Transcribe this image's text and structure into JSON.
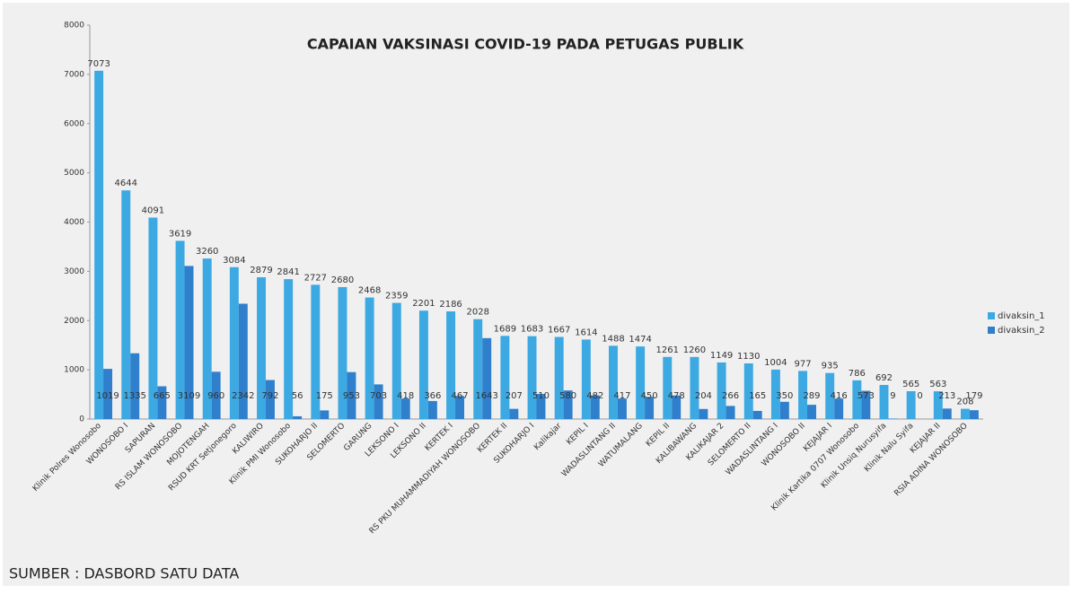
{
  "chart_data": {
    "type": "bar",
    "title": "CAPAIAN VAKSINASI COVID-19 PADA PETUGAS PUBLIK",
    "source": "SUMBER : DASBORD SATU DATA",
    "categories": [
      "Klinik Polres Wonosobo",
      "WONOSOBO I",
      "SAPURAN",
      "RS ISLAM WONOSOBO",
      "MOJOTENGAH",
      "RSUD KRT Setjonegoro",
      "KALIWIRO",
      "Klinik PMI Wonosobo",
      "SUKOHARJO II",
      "SELOMERTO",
      "GARUNG",
      "LEKSONO I",
      "LEKSONO II",
      "KERTEK I",
      "RS PKU MUHAMMADIYAH WONOSOBO",
      "KERTEK II",
      "SUKOHARJO I",
      "Kalikajar",
      "KEPIL I",
      "WADASLINTANG II",
      "WATUMALANG",
      "KEPIL II",
      "KALIBAWANG",
      "KALIKAJAR 2",
      "SELOMERTO II",
      "WADASLINTANG I",
      "WONOSOBO II",
      "KEJAJAR I",
      "Klinik Kartika 0707 Wonosobo",
      "Klinik Unsiq Nurusyifa",
      "Klinik Nalu Syifa",
      "KEJAJAR II",
      "RSIA ADINA WONOSOBO"
    ],
    "series": [
      {
        "name": "divaksin_1",
        "color": "#3ca9e2",
        "values": [
          7073,
          4644,
          4091,
          3619,
          3260,
          3084,
          2879,
          2841,
          2727,
          2680,
          2468,
          2359,
          2201,
          2186,
          2028,
          1689,
          1683,
          1667,
          1614,
          1488,
          1474,
          1261,
          1260,
          1149,
          1130,
          1004,
          977,
          935,
          786,
          692,
          565,
          563,
          208
        ]
      },
      {
        "name": "divaksin_2",
        "color": "#2f7fcc",
        "values": [
          1019,
          1335,
          665,
          3109,
          960,
          2342,
          792,
          56,
          175,
          953,
          703,
          418,
          366,
          467,
          1643,
          207,
          510,
          580,
          482,
          417,
          450,
          478,
          204,
          266,
          165,
          350,
          289,
          416,
          573,
          9,
          0,
          213,
          179
        ]
      }
    ],
    "ylim": [
      0,
      8000
    ],
    "yticks": [
      0,
      1000,
      2000,
      3000,
      4000,
      5000,
      6000,
      7000,
      8000
    ],
    "legend": "right"
  }
}
